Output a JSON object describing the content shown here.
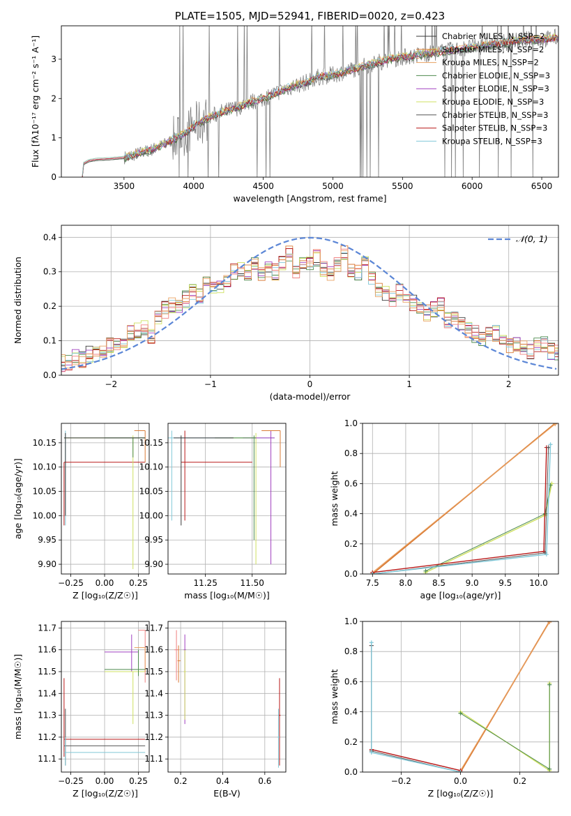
{
  "colors": {
    "chabrier_miles": "#3a3a3a",
    "salpeter_miles": "#d97a34",
    "kroupa_miles": "#e8a060",
    "chabrier_elodie": "#4d8a4d",
    "salpeter_elodie": "#a040c0",
    "kroupa_elodie": "#cfe060",
    "chabrier_stelib": "#555555",
    "salpeter_stelib": "#b81818",
    "kroupa_stelib": "#80c8d8",
    "data": "#808080",
    "gauss": "#5b86d6",
    "pink": "#f08080"
  },
  "chart_data": [
    {
      "id": "spectrum",
      "type": "line",
      "title": "PLATE=1505, MJD=52941, FIBERID=0020, z=0.423",
      "xlabel": "wavelength [Angstrom, rest frame]",
      "ylabel": "Flux [fλ10⁻¹⁷ erg cm⁻² s⁻¹ A⁻¹]",
      "xlim": [
        3050,
        6620
      ],
      "ylim": [
        0,
        3.85
      ],
      "xticks": [
        "3500",
        "4000",
        "4500",
        "5000",
        "5500",
        "6000",
        "6500"
      ],
      "yticks": [
        "0",
        "1",
        "2",
        "3"
      ],
      "legend": "top-right",
      "legend_entries": [
        "Chabrier MILES, N_SSP=2",
        "Salpeter MILES, N_SSP=2",
        "Kroupa MILES, N_SSP=2",
        "Chabrier ELODIE, N_SSP=3",
        "Salpeter ELODIE, N_SSP=3",
        "Kroupa ELODIE, N_SSP=3",
        "Chabrier STELIB, N_SSP=3",
        "Salpeter STELIB, N_SSP=3",
        "Kroupa STELIB, N_SSP=3"
      ],
      "model_points": [
        [
          3200,
          0.0
        ],
        [
          3210,
          0.35
        ],
        [
          3250,
          0.42
        ],
        [
          3300,
          0.45
        ],
        [
          3400,
          0.47
        ],
        [
          3500,
          0.5
        ],
        [
          3600,
          0.6
        ],
        [
          3700,
          0.7
        ],
        [
          3800,
          0.85
        ],
        [
          3900,
          1.05
        ],
        [
          3950,
          1.15
        ],
        [
          4000,
          1.3
        ],
        [
          4100,
          1.5
        ],
        [
          4200,
          1.65
        ],
        [
          4300,
          1.75
        ],
        [
          4400,
          1.9
        ],
        [
          4500,
          2.0
        ],
        [
          4600,
          2.15
        ],
        [
          4700,
          2.3
        ],
        [
          4800,
          2.4
        ],
        [
          4900,
          2.55
        ],
        [
          5000,
          2.6
        ],
        [
          5100,
          2.7
        ],
        [
          5200,
          2.8
        ],
        [
          5300,
          2.9
        ],
        [
          5400,
          3.0
        ],
        [
          5500,
          3.05
        ],
        [
          5600,
          3.1
        ],
        [
          5700,
          3.15
        ],
        [
          5800,
          3.2
        ],
        [
          5900,
          3.25
        ],
        [
          6000,
          3.3
        ],
        [
          6100,
          3.35
        ],
        [
          6200,
          3.4
        ],
        [
          6300,
          3.45
        ],
        [
          6400,
          3.5
        ],
        [
          6500,
          3.5
        ],
        [
          6600,
          3.55
        ]
      ],
      "grid": false
    },
    {
      "id": "residuals",
      "type": "line",
      "xlabel": "(data-model)/error",
      "ylabel": "Normed distribution",
      "xlim": [
        -2.5,
        2.5
      ],
      "ylim": [
        0,
        0.435
      ],
      "xticks": [
        "−2",
        "−1",
        "0",
        "1",
        "2"
      ],
      "yticks": [
        "0.0",
        "0.1",
        "0.2",
        "0.3",
        "0.4"
      ],
      "legend": "top-right",
      "legend_entries": [
        "𝒩(0, 1)"
      ],
      "hist_base": [
        0.03,
        0.035,
        0.04,
        0.05,
        0.045,
        0.06,
        0.065,
        0.07,
        0.09,
        0.085,
        0.1,
        0.12,
        0.13,
        0.14,
        0.11,
        0.17,
        0.19,
        0.2,
        0.2,
        0.22,
        0.24,
        0.23,
        0.26,
        0.26,
        0.25,
        0.28,
        0.3,
        0.31,
        0.3,
        0.32,
        0.29,
        0.31,
        0.3,
        0.33,
        0.35,
        0.3,
        0.32,
        0.33,
        0.34,
        0.31,
        0.3,
        0.32,
        0.36,
        0.3,
        0.3,
        0.32,
        0.28,
        0.25,
        0.24,
        0.22,
        0.24,
        0.23,
        0.21,
        0.2,
        0.18,
        0.19,
        0.21,
        0.16,
        0.17,
        0.15,
        0.13,
        0.12,
        0.11,
        0.12,
        0.12,
        0.11,
        0.09,
        0.085,
        0.08,
        0.07,
        0.085,
        0.09,
        0.07,
        0.065,
        0.075
      ],
      "grid": true
    },
    {
      "id": "age_vs_z",
      "type": "scatter",
      "xlabel": "Z [log₁₀(Z/Z☉)]",
      "ylabel": "age  [log₁₀(age/yr)]",
      "xlim": [
        -0.32,
        0.33
      ],
      "ylim": [
        9.88,
        10.19
      ],
      "xticks": [
        "−0.25",
        "0.00",
        "0.25"
      ],
      "yticks": [
        "9.90",
        "9.95",
        "10.00",
        "10.05",
        "10.10",
        "10.15"
      ],
      "grid": true
    },
    {
      "id": "age_vs_mass",
      "type": "scatter",
      "xlabel": "mass [log₁₀(M/M☉)]",
      "xlim": [
        11.05,
        11.68
      ],
      "ylim": [
        9.88,
        10.19
      ],
      "xticks": [
        "11.25",
        "11.50"
      ],
      "yticks": [
        "9.90",
        "9.95",
        "10.00",
        "10.05",
        "10.10",
        "10.15"
      ],
      "grid": true
    },
    {
      "id": "weight_vs_age",
      "type": "line",
      "xlabel": "age  [log₁₀(age/yr)]",
      "ylabel": "mass weight",
      "xlim": [
        7.35,
        10.3
      ],
      "ylim": [
        0,
        1.0
      ],
      "xticks": [
        "7.5",
        "8.0",
        "8.5",
        "9.0",
        "9.5",
        "10.0"
      ],
      "yticks": [
        "0.0",
        "0.2",
        "0.4",
        "0.6",
        "0.8",
        "1.0"
      ],
      "grid": true
    },
    {
      "id": "mass_vs_z",
      "type": "scatter",
      "xlabel": "Z [log₁₀(Z/Z☉)]",
      "ylabel": "mass [log₁₀(M/M☉)]",
      "xlim": [
        -0.32,
        0.33
      ],
      "ylim": [
        11.04,
        11.73
      ],
      "xticks": [
        "−0.25",
        "0.00",
        "0.25"
      ],
      "yticks": [
        "11.1",
        "11.2",
        "11.3",
        "11.4",
        "11.5",
        "11.6",
        "11.7"
      ],
      "grid": true
    },
    {
      "id": "mass_vs_ebv",
      "type": "scatter",
      "xlabel": "E(B-V)",
      "xlim": [
        0.14,
        0.7
      ],
      "ylim": [
        11.04,
        11.73
      ],
      "xticks": [
        "0.2",
        "0.4",
        "0.6"
      ],
      "yticks": [
        "11.1",
        "11.2",
        "11.3",
        "11.4",
        "11.5",
        "11.6",
        "11.7"
      ],
      "grid": true
    },
    {
      "id": "weight_vs_z",
      "type": "line",
      "xlabel": "Z [log₁₀(Z/Z☉)]",
      "ylabel": "mass weight",
      "xlim": [
        -0.33,
        0.33
      ],
      "ylim": [
        0,
        1.0
      ],
      "xticks": [
        "−0.2",
        "0.0",
        "0.2"
      ],
      "yticks": [
        "0.0",
        "0.2",
        "0.4",
        "0.6",
        "0.8",
        "1.0"
      ],
      "grid": true
    }
  ]
}
